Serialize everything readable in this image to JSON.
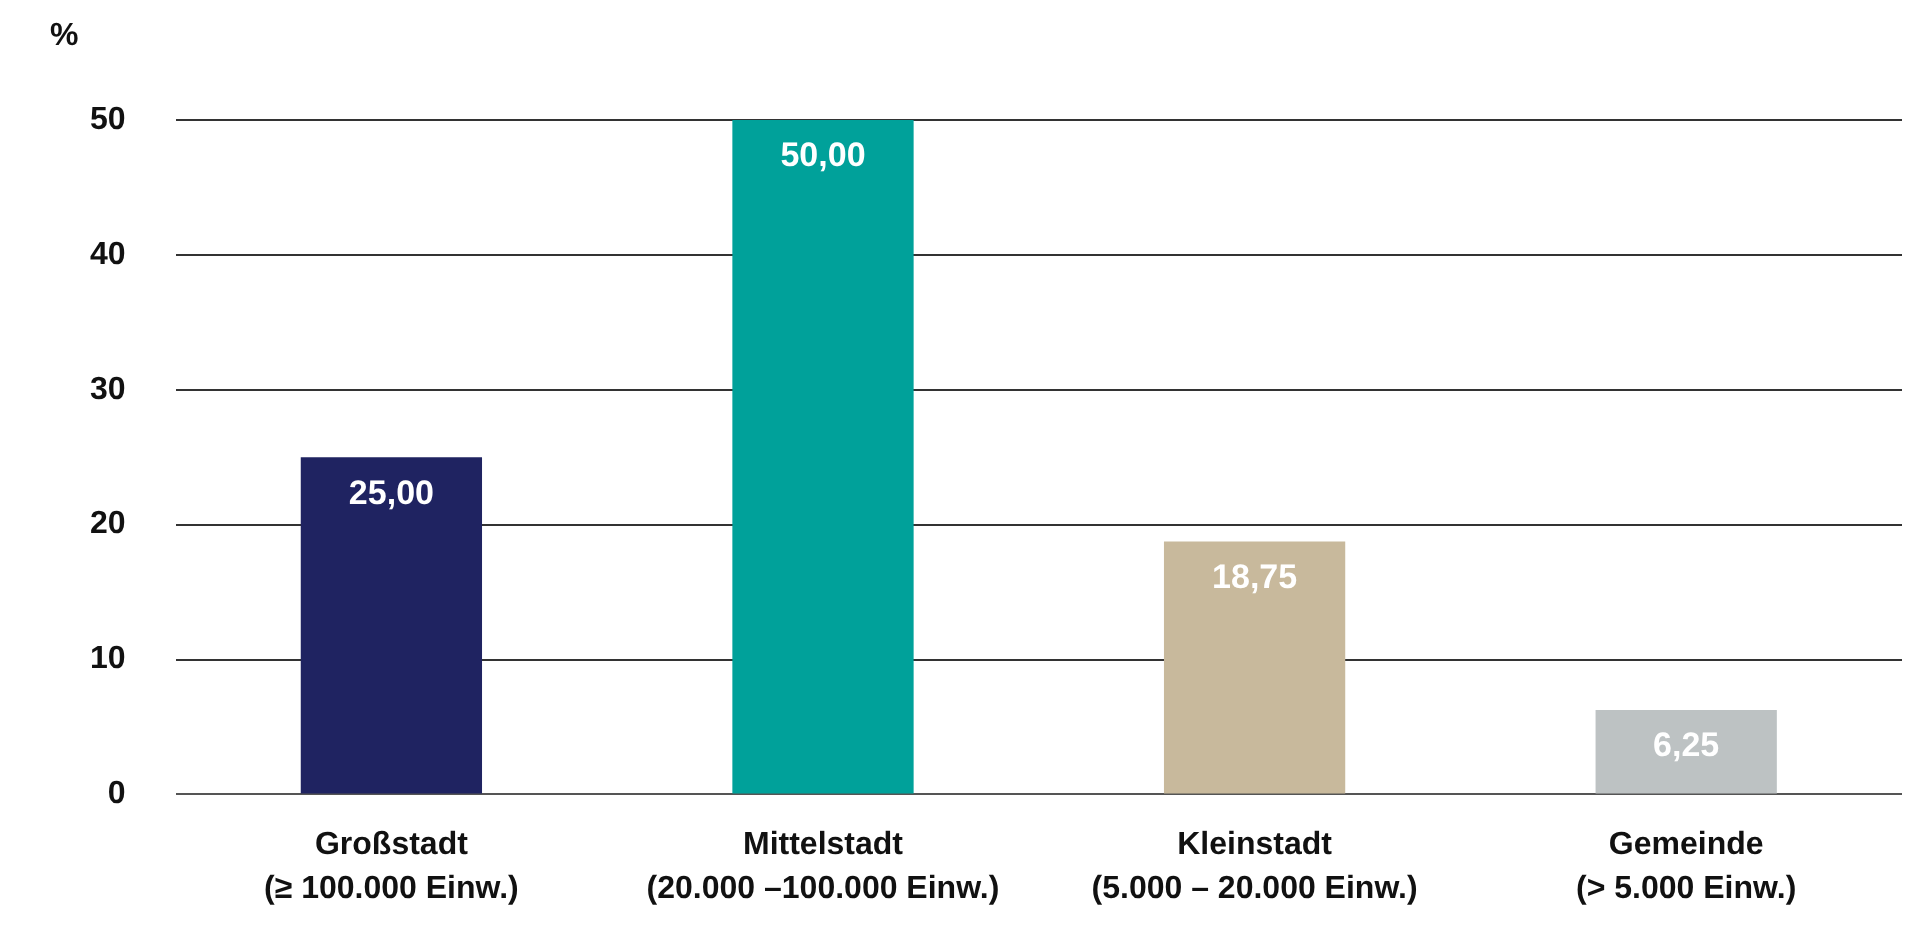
{
  "chart_data": {
    "type": "bar",
    "ylabel": "%",
    "categories": [
      "Großstadt\n(≥ 100.000 Einw.)",
      "Mittelstadt\n(20.000 –100.000 Einw.)",
      "Kleinstadt\n(5.000 – 20.000 Einw.)",
      "Gemeinde\n(> 5.000 Einw.)"
    ],
    "values": [
      25,
      50,
      18.75,
      6.25
    ],
    "colors": [
      "#1f2361",
      "#00a19a",
      "#c8b99c",
      "#bdc2c3"
    ],
    "value_labels": [
      "25,00",
      "50,00",
      "18,75",
      "6,25"
    ],
    "ylim": [
      0,
      50
    ],
    "yticks": [
      0,
      10,
      20,
      30,
      40,
      50
    ],
    "grid": "y",
    "legend": false
  }
}
